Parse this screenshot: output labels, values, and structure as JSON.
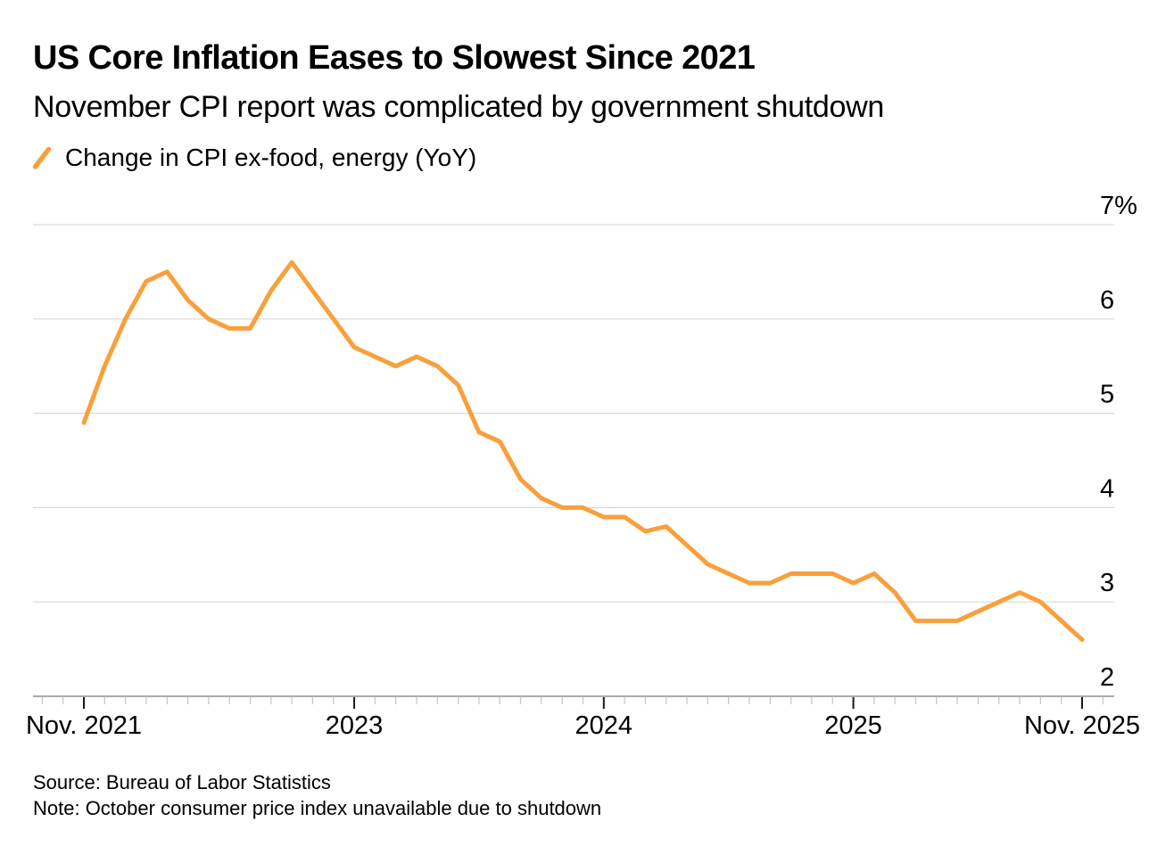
{
  "header": {
    "title": "US Core Inflation Eases to Slowest Since 2021",
    "subtitle": "November CPI report was complicated by government shutdown"
  },
  "legend": {
    "label": "Change in CPI ex-food, energy (YoY)"
  },
  "footer": {
    "source": "Source: Bureau of Labor Statistics",
    "note": "Note: October consumer price index unavailable due to shutdown"
  },
  "colors": {
    "line": "#F8A03C",
    "grid_line": "#D9D9D9",
    "axis_line": "#ACACAC",
    "tick_minor": "#C8C8C8",
    "tick_major": "#1A1A1A",
    "text": "#000000",
    "background": "#FFFFFF"
  },
  "chart_data": {
    "type": "line",
    "title": "US Core Inflation Eases to Slowest Since 2021",
    "subtitle": "November CPI report was complicated by government shutdown",
    "xlabel": "",
    "ylabel": "Change in CPI ex-food, energy, year over year, percent",
    "ylim": [
      2,
      7
    ],
    "grid": "horizontal",
    "legend_position": "top-left",
    "x_frequency": "monthly",
    "x": [
      "Nov 2021",
      "Dec 2021",
      "Jan 2022",
      "Feb 2022",
      "Mar 2022",
      "Apr 2022",
      "May 2022",
      "Jun 2022",
      "Jul 2022",
      "Aug 2022",
      "Sep 2022",
      "Oct 2022",
      "Nov 2022",
      "Dec 2022",
      "Jan 2023",
      "Feb 2023",
      "Mar 2023",
      "Apr 2023",
      "May 2023",
      "Jun 2023",
      "Jul 2023",
      "Aug 2023",
      "Sep 2023",
      "Oct 2023",
      "Nov 2023",
      "Dec 2023",
      "Jan 2024",
      "Feb 2024",
      "Mar 2024",
      "Apr 2024",
      "May 2024",
      "Jun 2024",
      "Jul 2024",
      "Aug 2024",
      "Sep 2024",
      "Oct 2024",
      "Nov 2024",
      "Dec 2024",
      "Jan 2025",
      "Feb 2025",
      "Mar 2025",
      "Apr 2025",
      "May 2025",
      "Jun 2025",
      "Jul 2025",
      "Aug 2025",
      "Sep 2025",
      "Oct 2025",
      "Nov 2025"
    ],
    "series": [
      {
        "name": "Change in CPI ex-food, energy (YoY)",
        "color": "#F8A03C",
        "missing_note": "Oct 2025 value unavailable due to government shutdown (null)",
        "values": [
          4.9,
          5.5,
          6.0,
          6.4,
          6.5,
          6.2,
          6.0,
          5.9,
          5.9,
          6.3,
          6.6,
          6.3,
          6.0,
          5.7,
          5.6,
          5.5,
          5.6,
          5.5,
          5.3,
          4.8,
          4.7,
          4.3,
          4.1,
          4.0,
          4.0,
          3.9,
          3.9,
          3.75,
          3.8,
          3.6,
          3.4,
          3.3,
          3.2,
          3.2,
          3.3,
          3.3,
          3.3,
          3.2,
          3.3,
          3.1,
          2.8,
          2.8,
          2.8,
          2.9,
          3.0,
          3.1,
          3.0,
          null,
          2.6
        ]
      }
    ],
    "y_ticks": [
      {
        "value": 7,
        "label": "7%"
      },
      {
        "value": 6,
        "label": "6"
      },
      {
        "value": 5,
        "label": "5"
      },
      {
        "value": 4,
        "label": "4"
      },
      {
        "value": 3,
        "label": "3"
      },
      {
        "value": 2,
        "label": "2"
      }
    ],
    "x_major_ticks": [
      {
        "index": 0,
        "label": "Nov. 2021"
      },
      {
        "index": 13,
        "label": "2023"
      },
      {
        "index": 25,
        "label": "2024"
      },
      {
        "index": 37,
        "label": "2025"
      },
      {
        "index": 48,
        "label": "Nov. 2025"
      }
    ]
  }
}
